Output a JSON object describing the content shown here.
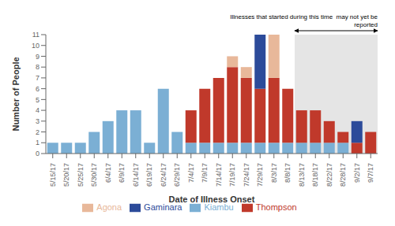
{
  "chart_data": {
    "type": "bar",
    "stacked": true,
    "xlabel": "Date of Illness Onset",
    "ylabel": "Number of People",
    "categories": [
      "5/15/17",
      "5/20/17",
      "5/25/17",
      "5/30/17",
      "6/4/17",
      "6/9/17",
      "6/14/17",
      "6/19/17",
      "6/24/17",
      "6/29/17",
      "7/4/17",
      "7/9/17",
      "7/14/17",
      "7/19/17",
      "7/24/17",
      "7/29/17",
      "8/3/17",
      "8/8/17",
      "8/13/17",
      "8/18/17",
      "8/22/17",
      "8/28/17",
      "9/2/17",
      "9/7/17"
    ],
    "series": [
      {
        "name": "Kiambu",
        "color": "#7bafd4",
        "values": [
          1,
          1,
          1,
          2,
          3,
          4,
          4,
          1,
          6,
          2,
          1,
          1,
          1,
          1,
          1,
          1,
          1,
          1,
          1,
          1,
          1,
          1,
          0,
          0
        ]
      },
      {
        "name": "Thompson",
        "color": "#c0392b",
        "values": [
          0,
          0,
          0,
          0,
          0,
          0,
          0,
          0,
          0,
          0,
          3,
          5,
          6,
          7,
          6,
          5,
          6,
          5,
          3,
          3,
          2,
          1,
          1,
          2
        ]
      },
      {
        "name": "Agona",
        "color": "#e8b89a",
        "values": [
          0,
          0,
          0,
          0,
          0,
          0,
          0,
          0,
          0,
          0,
          0,
          0,
          0,
          1,
          1,
          0,
          4,
          0,
          0,
          0,
          0,
          0,
          0,
          0
        ]
      },
      {
        "name": "Gaminara",
        "color": "#2c4b9a",
        "values": [
          0,
          0,
          0,
          0,
          0,
          0,
          0,
          0,
          0,
          0,
          0,
          0,
          0,
          0,
          0,
          5,
          0,
          0,
          0,
          0,
          0,
          0,
          2,
          0
        ]
      }
    ],
    "ylim": [
      0,
      11
    ],
    "yticks": [
      0,
      1,
      2,
      3,
      4,
      5,
      6,
      7,
      8,
      9,
      10,
      11
    ],
    "grid": false,
    "legend": "bottom",
    "annotations": [
      {
        "text": "Illnesses that started during this time  may not yet be\nreported",
        "x_start": "8/13/17",
        "x_end": "9/7/17"
      }
    ]
  }
}
